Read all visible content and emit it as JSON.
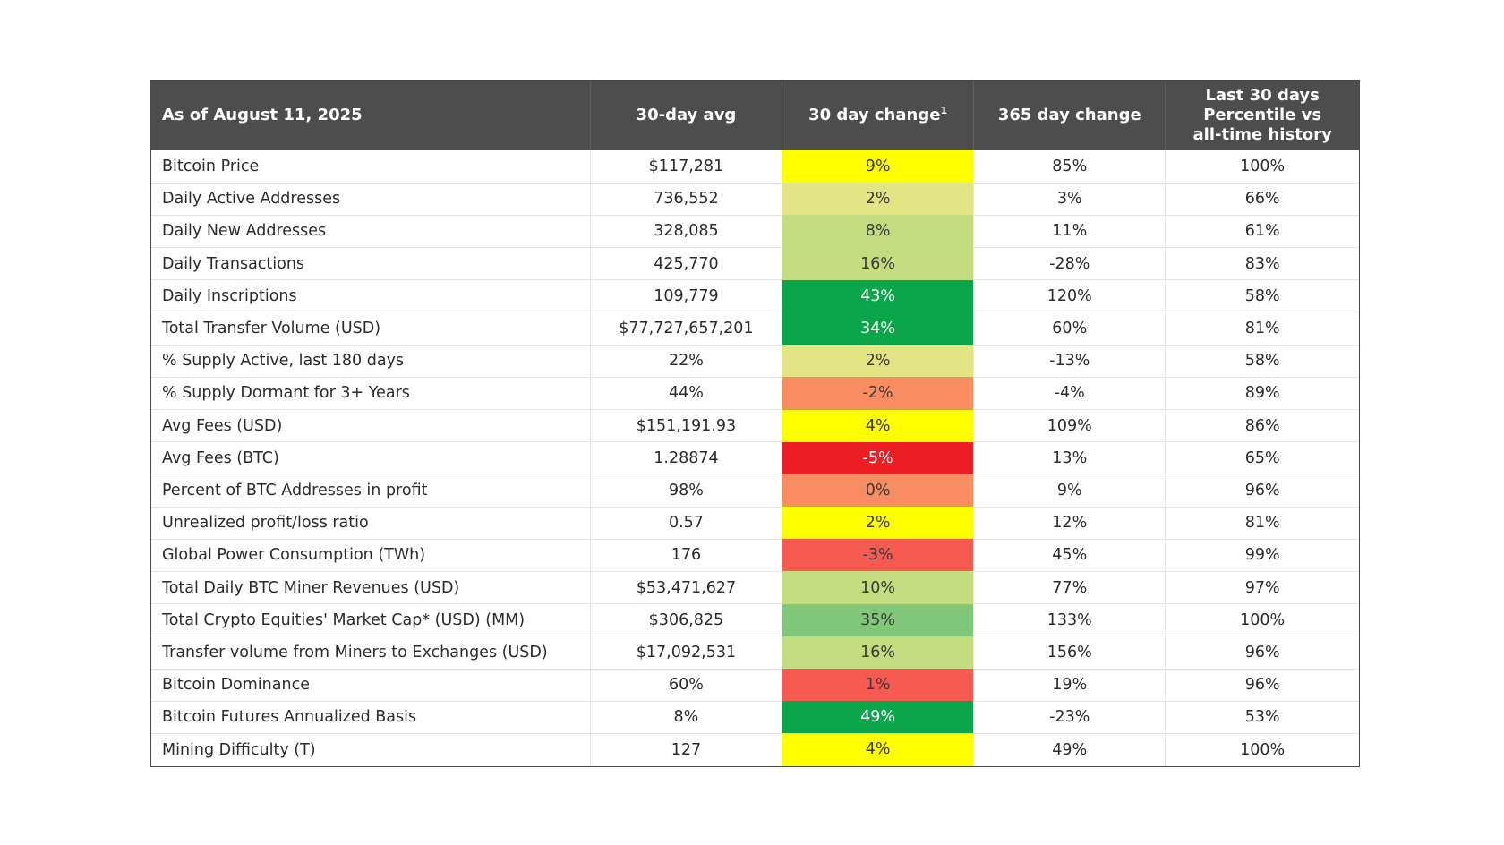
{
  "table": {
    "headers": {
      "metric": "As of August 11, 2025",
      "avg": "30-day avg",
      "change30": "30 day change",
      "change30_footnote": "1",
      "change365": "365 day change",
      "percentile_line1": "Last 30 days",
      "percentile_line2": "Percentile vs",
      "percentile_line3": "all-time history"
    },
    "rows": [
      {
        "metric": "Bitcoin Price",
        "avg": "$117,281",
        "change30": "9%",
        "change365": "85%",
        "percentile": "100%",
        "bg": "#ffff00",
        "fg": "#3a3a3a"
      },
      {
        "metric": "Daily Active Addresses",
        "avg": "736,552",
        "change30": "2%",
        "change365": "3%",
        "percentile": "66%",
        "bg": "#e3e584",
        "fg": "#3a3a3a"
      },
      {
        "metric": "Daily New Addresses",
        "avg": "328,085",
        "change30": "8%",
        "change365": "11%",
        "percentile": "61%",
        "bg": "#c4dc80",
        "fg": "#3a3a3a"
      },
      {
        "metric": "Daily Transactions",
        "avg": "425,770",
        "change30": "16%",
        "change365": "-28%",
        "percentile": "83%",
        "bg": "#c4dc80",
        "fg": "#3a3a3a"
      },
      {
        "metric": "Daily Inscriptions",
        "avg": "109,779",
        "change30": "43%",
        "change365": "120%",
        "percentile": "58%",
        "bg": "#0ba64a",
        "fg": "#ffffff"
      },
      {
        "metric": "Total Transfer Volume (USD)",
        "avg": "$77,727,657,201",
        "change30": "34%",
        "change365": "60%",
        "percentile": "81%",
        "bg": "#0ba64a",
        "fg": "#ffffff"
      },
      {
        "metric": "% Supply Active, last 180 days",
        "avg": "22%",
        "change30": "2%",
        "change365": "-13%",
        "percentile": "58%",
        "bg": "#e3e584",
        "fg": "#3a3a3a"
      },
      {
        "metric": "% Supply Dormant for 3+ Years",
        "avg": "44%",
        "change30": "-2%",
        "change365": "-4%",
        "percentile": "89%",
        "bg": "#f98d62",
        "fg": "#3a3a3a"
      },
      {
        "metric": "Avg Fees (USD)",
        "avg": "$151,191.93",
        "change30": "4%",
        "change365": "109%",
        "percentile": "86%",
        "bg": "#ffff00",
        "fg": "#3a3a3a"
      },
      {
        "metric": "Avg Fees (BTC)",
        "avg": "1.28874",
        "change30": "-5%",
        "change365": "13%",
        "percentile": "65%",
        "bg": "#ec1e24",
        "fg": "#ffffff"
      },
      {
        "metric": "Percent of BTC Addresses in profit",
        "avg": "98%",
        "change30": "0%",
        "change365": "9%",
        "percentile": "96%",
        "bg": "#f98d62",
        "fg": "#3a3a3a"
      },
      {
        "metric": "Unrealized profit/loss ratio",
        "avg": "0.57",
        "change30": "2%",
        "change365": "12%",
        "percentile": "81%",
        "bg": "#ffff00",
        "fg": "#3a3a3a"
      },
      {
        "metric": "Global Power Consumption (TWh)",
        "avg": "176",
        "change30": "-3%",
        "change365": "45%",
        "percentile": "99%",
        "bg": "#f65a51",
        "fg": "#3a3a3a"
      },
      {
        "metric": "Total Daily BTC Miner Revenues (USD)",
        "avg": "$53,471,627",
        "change30": "10%",
        "change365": "77%",
        "percentile": "97%",
        "bg": "#c4dc80",
        "fg": "#3a3a3a"
      },
      {
        "metric": "Total Crypto Equities' Market Cap* (USD) (MM)",
        "avg": "$306,825",
        "change30": "35%",
        "change365": "133%",
        "percentile": "100%",
        "bg": "#80c77a",
        "fg": "#3a3a3a"
      },
      {
        "metric": "Transfer volume from Miners to Exchanges (USD)",
        "avg": "$17,092,531",
        "change30": "16%",
        "change365": "156%",
        "percentile": "96%",
        "bg": "#c4dc80",
        "fg": "#3a3a3a"
      },
      {
        "metric": "Bitcoin Dominance",
        "avg": "60%",
        "change30": "1%",
        "change365": "19%",
        "percentile": "96%",
        "bg": "#f65a51",
        "fg": "#3a3a3a"
      },
      {
        "metric": "Bitcoin Futures Annualized Basis",
        "avg": "8%",
        "change30": "49%",
        "change365": "-23%",
        "percentile": "53%",
        "bg": "#0ba64a",
        "fg": "#ffffff"
      },
      {
        "metric": "Mining Difficulty (T)",
        "avg": "127",
        "change30": "4%",
        "change365": "49%",
        "percentile": "100%",
        "bg": "#ffff00",
        "fg": "#3a3a3a"
      }
    ]
  }
}
